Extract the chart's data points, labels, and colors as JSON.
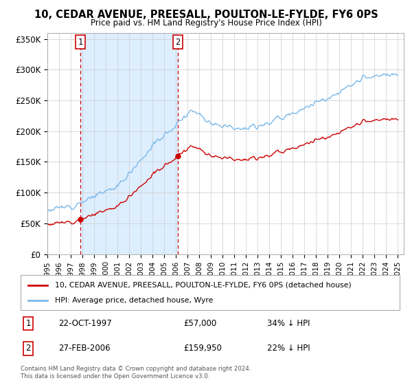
{
  "title": "10, CEDAR AVENUE, PREESALL, POULTON-LE-FYLDE, FY6 0PS",
  "subtitle": "Price paid vs. HM Land Registry's House Price Index (HPI)",
  "ylabel_ticks": [
    "£0",
    "£50K",
    "£100K",
    "£150K",
    "£200K",
    "£250K",
    "£300K",
    "£350K"
  ],
  "ylim": [
    0,
    360000
  ],
  "xlim_start": 1995.0,
  "xlim_end": 2025.5,
  "sale1_date": 1997.81,
  "sale1_price": 57000,
  "sale1_label": "1",
  "sale2_date": 2006.16,
  "sale2_price": 159950,
  "sale2_label": "2",
  "legend_line1": "10, CEDAR AVENUE, PREESALL, POULTON-LE-FYLDE, FY6 0PS (detached house)",
  "legend_line2": "HPI: Average price, detached house, Wyre",
  "table_row1": [
    "1",
    "22-OCT-1997",
    "£57,000",
    "34% ↓ HPI"
  ],
  "table_row2": [
    "2",
    "27-FEB-2006",
    "£159,950",
    "22% ↓ HPI"
  ],
  "footnote": "Contains HM Land Registry data © Crown copyright and database right 2024.\nThis data is licensed under the Open Government Licence v3.0.",
  "hpi_color": "#7ab8e8",
  "price_color": "#cc0000",
  "vline_color": "#cc0000",
  "shade_color": "#ddeeff",
  "bg_color": "#ffffff",
  "grid_color": "#cccccc"
}
